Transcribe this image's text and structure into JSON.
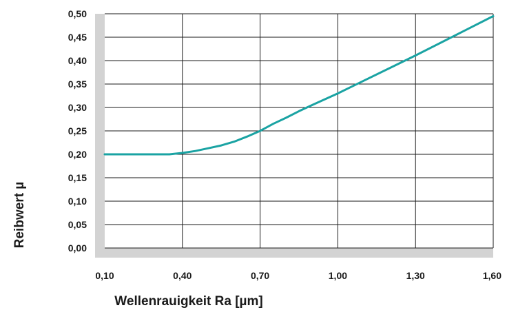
{
  "chart_data": {
    "type": "line",
    "xlabel": "Wellenrauigkeit Ra [µm]",
    "ylabel": "Reibwert µ",
    "xlim": [
      0.1,
      1.6
    ],
    "ylim": [
      0.0,
      0.5
    ],
    "x_ticks": [
      0.1,
      0.4,
      0.7,
      1.0,
      1.3,
      1.6
    ],
    "y_ticks": [
      0.0,
      0.05,
      0.1,
      0.15,
      0.2,
      0.25,
      0.3,
      0.35,
      0.4,
      0.45,
      0.5
    ],
    "x_tick_labels": [
      "0,10",
      "0,40",
      "0,70",
      "1,00",
      "1,30",
      "1,60"
    ],
    "y_tick_labels": [
      "0,00",
      "0,05",
      "0,10",
      "0,15",
      "0,20",
      "0,25",
      "0,30",
      "0,35",
      "0,40",
      "0,45",
      "0,50"
    ],
    "grid": true,
    "series": [
      {
        "color": "#1aa3a3",
        "x": [
          0.1,
          0.2,
          0.3,
          0.35,
          0.4,
          0.45,
          0.5,
          0.55,
          0.6,
          0.65,
          0.7,
          0.75,
          0.8,
          0.85,
          0.9,
          1.0,
          1.1,
          1.2,
          1.3,
          1.4,
          1.5,
          1.6
        ],
        "y": [
          0.2,
          0.2,
          0.2,
          0.2,
          0.203,
          0.207,
          0.213,
          0.219,
          0.227,
          0.238,
          0.25,
          0.265,
          0.278,
          0.292,
          0.305,
          0.33,
          0.357,
          0.384,
          0.411,
          0.439,
          0.467,
          0.495
        ]
      }
    ],
    "colors": {
      "axis_band": "#d3d3d3",
      "grid": "#1a1a1a",
      "line": "#1aa3a3"
    }
  }
}
